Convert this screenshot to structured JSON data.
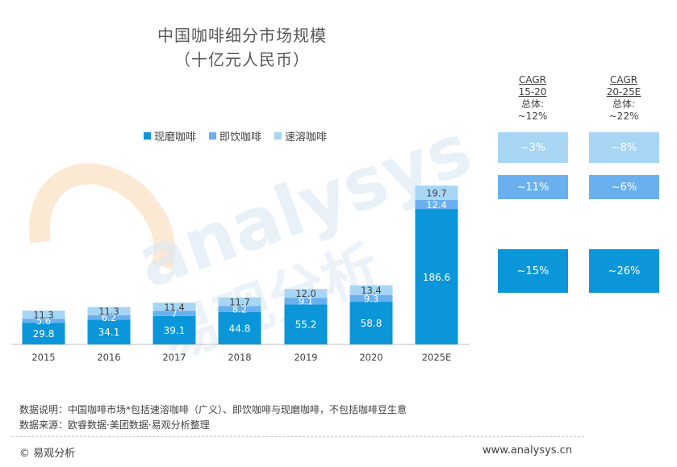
{
  "title_line1": "中国咖啡细分市场规模",
  "title_line2": "（十亿元人民币）",
  "watermark": {
    "latin": "analysys",
    "cjk": "易观分析"
  },
  "colors": {
    "现磨咖啡": "#0a96d8",
    "即饮咖啡": "#6ab0ef",
    "速溶咖啡": "#a7d6f5"
  },
  "chart_data": {
    "type": "bar",
    "stacked": true,
    "categories": [
      "2015",
      "2016",
      "2017",
      "2018",
      "2019",
      "2020",
      "2025E"
    ],
    "series": [
      {
        "name": "现磨咖啡",
        "values": [
          29.8,
          34.1,
          39.1,
          44.8,
          55.2,
          58.8,
          186.6
        ]
      },
      {
        "name": "即饮咖啡",
        "values": [
          5.6,
          6.2,
          7,
          8.2,
          9.1,
          9.3,
          12.4
        ]
      },
      {
        "name": "速溶咖啡",
        "values": [
          11.3,
          11.3,
          11.4,
          11.7,
          12.0,
          13.4,
          19.7
        ]
      }
    ],
    "value_labels": [
      [
        "29.8",
        "34.1",
        "39.1",
        "44.8",
        "55.2",
        "58.8",
        "186.6"
      ],
      [
        "5.6",
        "6.2",
        "7",
        "8.2",
        "9.1",
        "9.3",
        "12.4"
      ],
      [
        "11.3",
        "11.3",
        "11.4",
        "11.7",
        "12.0",
        "13.4",
        "19.7"
      ]
    ],
    "legend": [
      "现磨咖啡",
      "即饮咖啡",
      "速溶咖啡"
    ],
    "legend_position": "top"
  },
  "cagr": [
    {
      "label": "CAGR",
      "period": "15-20",
      "total_label": "总体:",
      "total": "~12%",
      "values": [
        "~3%",
        "~11%",
        "~15%"
      ]
    },
    {
      "label": "CAGR",
      "period": "20-25E",
      "total_label": "总体:",
      "total": "~22%",
      "values": [
        "~8%",
        "~6%",
        "~26%"
      ]
    }
  ],
  "notes": {
    "explanation": "数据说明：中国咖啡市场*包括速溶咖啡（广义）、即饮咖啡与现磨咖啡，不包括咖啡豆生意",
    "source": "数据来源：欧睿数据·美团数据·易观分析整理"
  },
  "footer": {
    "copyright": "© 易观分析",
    "website": "www.analysys.cn"
  }
}
